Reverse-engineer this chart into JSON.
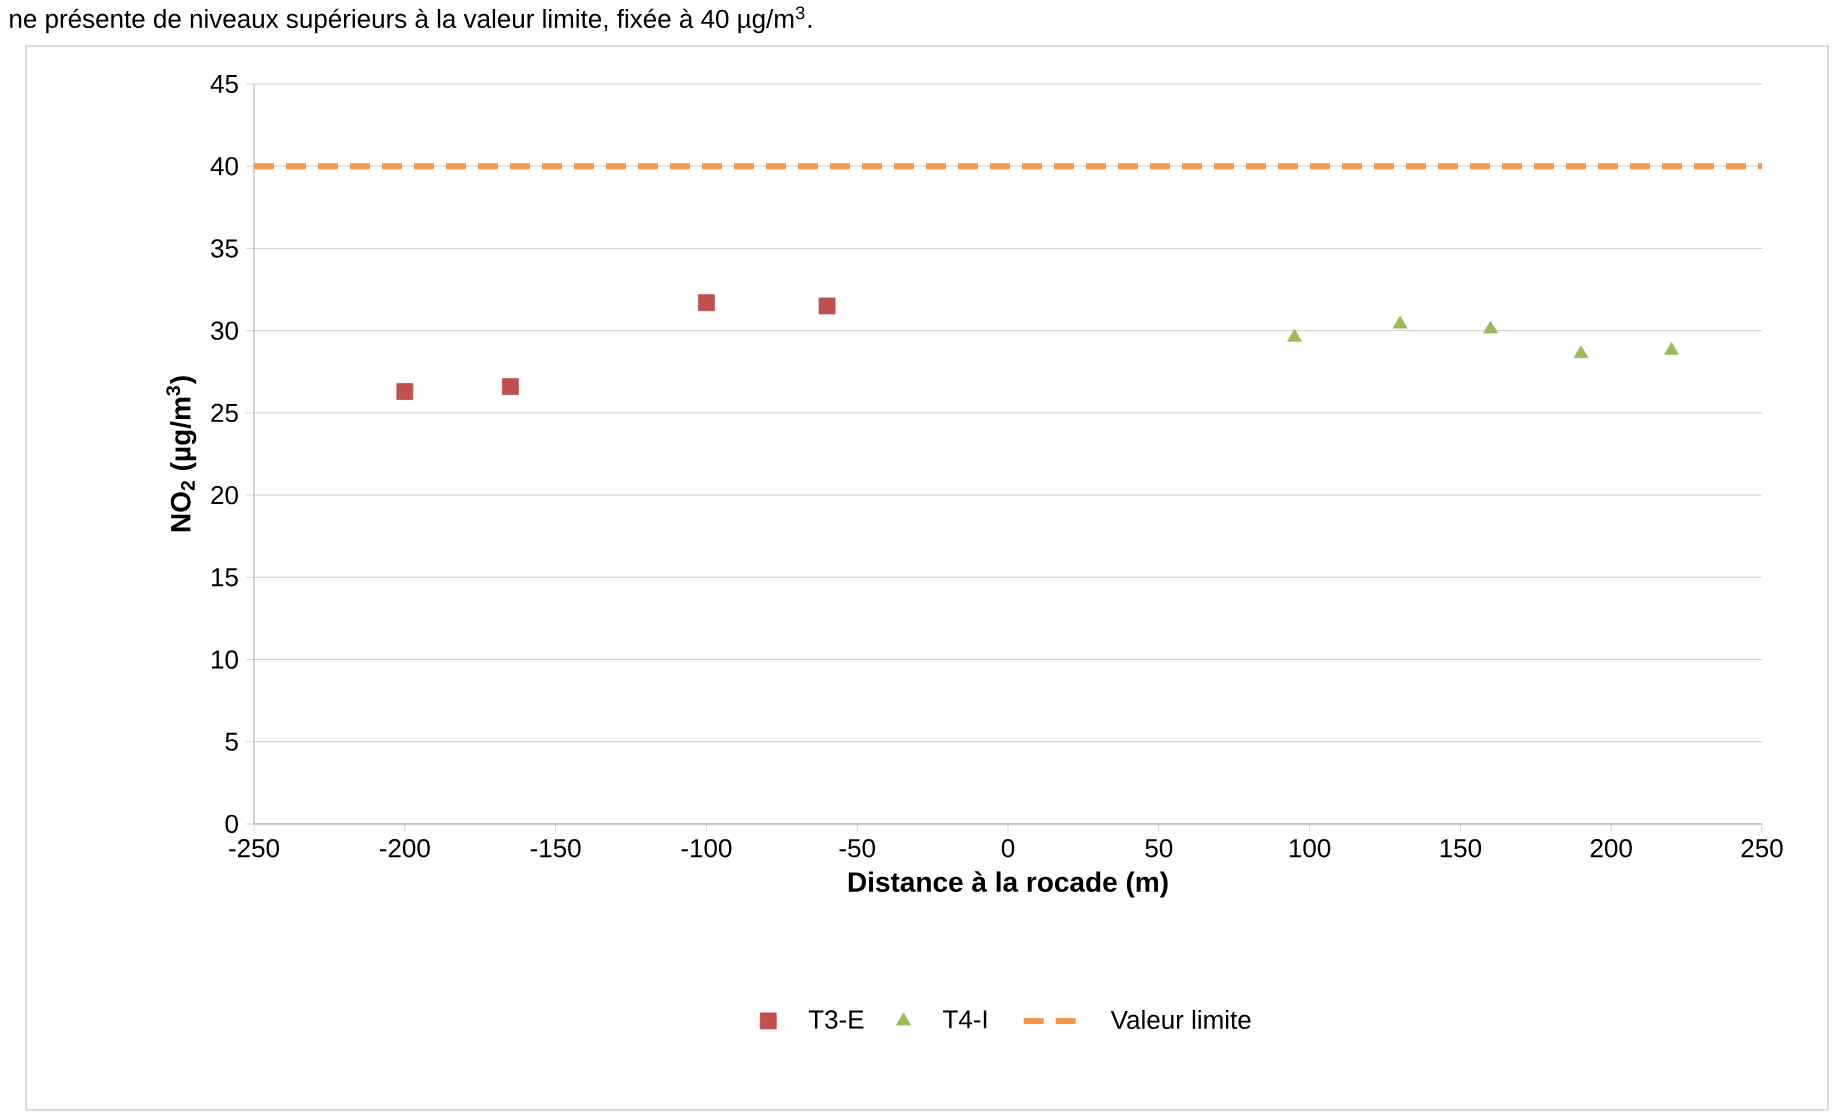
{
  "chart_data": {
    "type": "scatter",
    "annotations": [
      "ne présente de niveaux supérieurs à la valeur limite, fixée à 40 µg/m$^{3}$."
    ],
    "xlabel": "Distance à la rocade (m)",
    "ylabel": "NO$_{2}$ (µg/m$^{3}$)",
    "xlim": [
      -250,
      250
    ],
    "xticks": [
      -250,
      -200,
      -150,
      -100,
      -50,
      0,
      50,
      100,
      150,
      200,
      250
    ],
    "ylim": [
      0,
      45
    ],
    "yticks": [
      0,
      5,
      10,
      15,
      20,
      25,
      30,
      35,
      40,
      45
    ],
    "grid": "y",
    "legend": "bottom",
    "series": [
      {
        "name": "T3-E",
        "color": "#c0504d",
        "marker": "square",
        "x": [
          -200,
          -165,
          -100,
          -60
        ],
        "values": [
          26.3,
          26.6,
          31.7,
          31.5
        ]
      },
      {
        "name": "T4-I",
        "color": "#9bbb59",
        "marker": "triangle",
        "x": [
          95,
          130,
          160,
          190,
          220
        ],
        "values": [
          29.6,
          30.4,
          30.1,
          28.6,
          28.8
        ]
      },
      {
        "name": "Valeur limite",
        "type": "line",
        "color": "#f79646",
        "marker": "none",
        "line_style": "dashed",
        "x": [
          -250,
          250
        ],
        "values": [
          40,
          40
        ]
      }
    ]
  }
}
